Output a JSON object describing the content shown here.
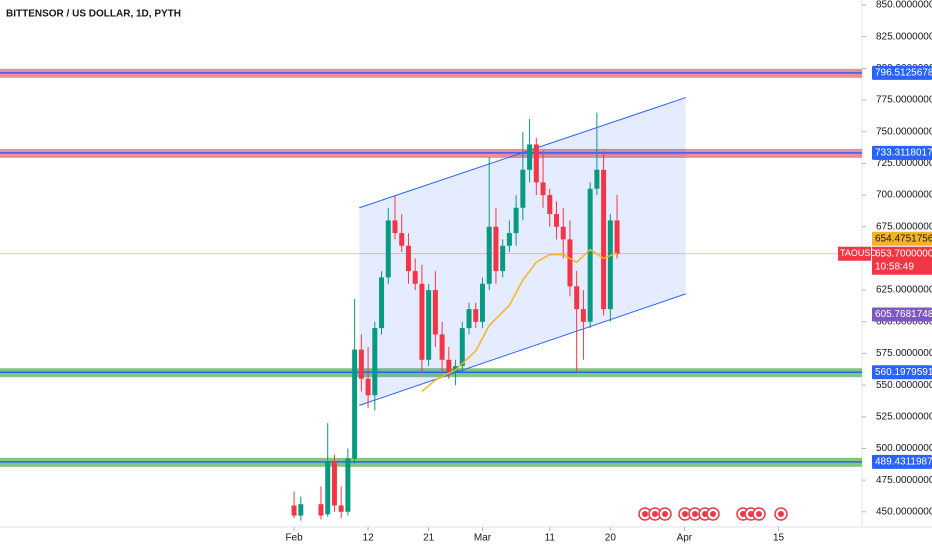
{
  "chart_data": {
    "type": "candlestick",
    "title": "BITTENSOR / US DOLLAR, 1D, PYTH",
    "x": [
      0,
      1,
      4,
      5,
      6,
      7,
      8,
      9,
      10,
      11,
      12,
      13,
      14,
      15,
      16,
      17,
      18,
      19,
      20,
      21,
      22,
      23,
      24,
      25,
      26,
      27,
      28,
      29,
      30,
      31,
      32,
      33,
      34,
      35,
      36,
      37,
      38,
      39,
      40,
      41,
      42,
      43,
      44,
      45,
      46,
      47,
      48
    ],
    "open": [
      455,
      447,
      456,
      448,
      490,
      455,
      450,
      492,
      578,
      555,
      542,
      595,
      635,
      680,
      670,
      660,
      640,
      630,
      570,
      625,
      590,
      570,
      560,
      565,
      595,
      610,
      600,
      630,
      675,
      640,
      660,
      670,
      690,
      720,
      740,
      710,
      700,
      685,
      675,
      665,
      628,
      610,
      600,
      705,
      720,
      610,
      680
    ],
    "high": [
      466,
      462,
      470,
      520,
      495,
      470,
      500,
      618,
      590,
      580,
      600,
      640,
      690,
      700,
      685,
      670,
      650,
      645,
      630,
      640,
      600,
      580,
      570,
      600,
      615,
      615,
      635,
      730,
      690,
      665,
      680,
      700,
      750,
      760,
      745,
      735,
      705,
      695,
      690,
      680,
      640,
      625,
      710,
      765,
      735,
      685,
      700
    ],
    "low": [
      445,
      443,
      444,
      446,
      450,
      445,
      447,
      488,
      545,
      532,
      530,
      590,
      630,
      665,
      655,
      630,
      625,
      560,
      565,
      580,
      560,
      555,
      550,
      560,
      590,
      595,
      595,
      625,
      630,
      635,
      655,
      660,
      680,
      710,
      700,
      690,
      675,
      665,
      650,
      620,
      560,
      570,
      595,
      700,
      605,
      600,
      650
    ],
    "close": [
      447,
      456,
      447,
      490,
      455,
      450,
      492,
      578,
      555,
      542,
      595,
      635,
      680,
      670,
      660,
      640,
      630,
      570,
      625,
      590,
      570,
      560,
      565,
      595,
      610,
      600,
      630,
      675,
      640,
      660,
      670,
      690,
      720,
      740,
      710,
      700,
      685,
      675,
      665,
      628,
      610,
      600,
      705,
      720,
      610,
      680,
      653.70000001
    ],
    "up_color": "#089981",
    "down_color": "#f23645",
    "ma": {
      "color": "#f5b323",
      "x": [
        19,
        21,
        24,
        27,
        29,
        32,
        34,
        36,
        38,
        40,
        42,
        44,
        46,
        48
      ],
      "values": [
        545,
        554,
        562,
        577,
        597,
        613,
        633,
        647,
        653,
        653,
        647,
        657,
        650,
        654.47517562
      ]
    },
    "channel": {
      "x": [
        9.7,
        58.2
      ],
      "upper": [
        690,
        777
      ],
      "lower": [
        534,
        622
      ],
      "color": "#2962ff"
    },
    "levels": [
      {
        "value": 796.51256781,
        "color": "#2962ff",
        "band_color": "#f28b96"
      },
      {
        "value": 733.31180178,
        "color": "#2962ff",
        "band_color": "#f28b96"
      },
      {
        "value": 560.19795915,
        "color": "#2962ff",
        "band_color": "#81c784"
      },
      {
        "value": 489.43119872,
        "color": "#2962ff",
        "band_color": "#81c784"
      }
    ],
    "marker": {
      "value": 605.76817481,
      "color": "#7e57c2"
    },
    "last": {
      "symbol": "TAOUSD",
      "time": "10:58:49",
      "color": "#f23645"
    },
    "xlim": [
      -43.7,
      84.4
    ],
    "ylim": [
      438,
      854
    ],
    "xticks": [
      {
        "value": 0,
        "label": "Feb"
      },
      {
        "value": 11,
        "label": "12"
      },
      {
        "value": 20,
        "label": "21"
      },
      {
        "value": 28,
        "label": "Mar"
      },
      {
        "value": 38,
        "label": "11"
      },
      {
        "value": 47,
        "label": "20"
      },
      {
        "value": 58,
        "label": "Apr"
      },
      {
        "value": 72,
        "label": "15"
      }
    ],
    "yticks": [
      {
        "value": 450,
        "label": "450.00000000"
      },
      {
        "value": 475,
        "label": "475.00000000"
      },
      {
        "value": 500,
        "label": "500.00000000"
      },
      {
        "value": 525,
        "label": "525.00000000"
      },
      {
        "value": 550,
        "label": "550.00000000"
      },
      {
        "value": 575,
        "label": "575.00000000"
      },
      {
        "value": 600,
        "label": "600.00000000"
      },
      {
        "value": 625,
        "label": "625.00000000"
      },
      {
        "value": 650,
        "label": "650.00000000"
      },
      {
        "value": 675,
        "label": "675.00000000"
      },
      {
        "value": 700,
        "label": "700.00000000"
      },
      {
        "value": 725,
        "label": "725.00000000"
      },
      {
        "value": 750,
        "label": "750.00000000"
      },
      {
        "value": 775,
        "label": "775.00000000"
      },
      {
        "value": 800,
        "label": "800.00000000"
      },
      {
        "value": 825,
        "label": "825.00000000"
      },
      {
        "value": 850,
        "label": "850.00000000"
      }
    ]
  }
}
